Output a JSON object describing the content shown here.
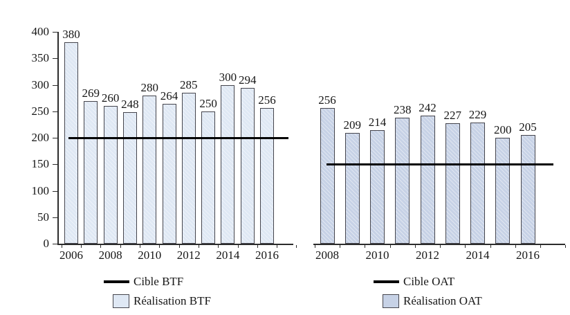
{
  "chart_data": [
    {
      "type": "bar",
      "title": "",
      "categories": [
        "2006",
        "2007",
        "2008",
        "2009",
        "2010",
        "2011",
        "2012",
        "2013",
        "2014",
        "2015",
        "2016"
      ],
      "values": [
        380,
        269,
        260,
        248,
        280,
        264,
        285,
        250,
        300,
        294,
        256
      ],
      "series_label": "Réalisation BTF",
      "target_line": {
        "label": "Cible BTF",
        "value": 200
      },
      "ylim": [
        0,
        400
      ],
      "yticks": [
        400,
        350,
        300,
        250,
        200,
        150,
        100,
        50,
        0
      ],
      "xticks": [
        "2006",
        "2008",
        "2010",
        "2012",
        "2014",
        "2016"
      ],
      "bar_color": "#dfe8f4",
      "target_color": "#000000",
      "legend_position": "bottom",
      "grid": false
    },
    {
      "type": "bar",
      "title": "",
      "categories": [
        "2008",
        "2009",
        "2010",
        "2011",
        "2012",
        "2013",
        "2014",
        "2015",
        "2016"
      ],
      "values": [
        256,
        209,
        214,
        238,
        242,
        227,
        229,
        200,
        205
      ],
      "series_label": "Réalisation OAT",
      "target_line": {
        "label": "Cible OAT",
        "value": 150
      },
      "ylim": [
        0,
        400
      ],
      "xticks": [
        "2008",
        "2010",
        "2012",
        "2014",
        "2016"
      ],
      "bar_color": "#c7d2e6",
      "target_color": "#000000",
      "legend_position": "bottom",
      "grid": false
    }
  ]
}
